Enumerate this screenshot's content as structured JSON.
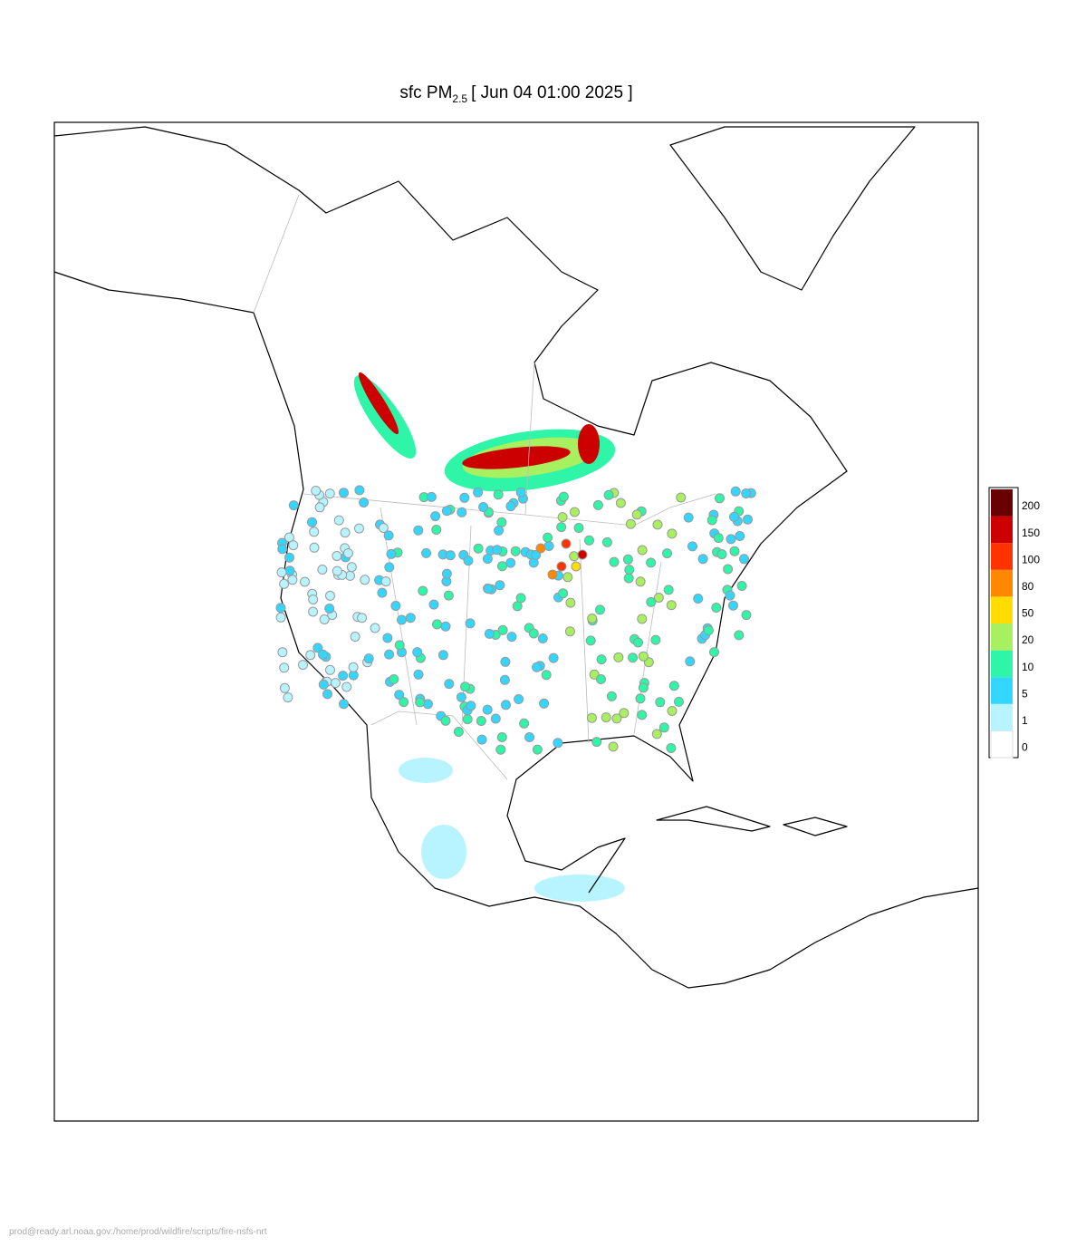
{
  "title": {
    "main": "sfc PM",
    "subscript": "2.5",
    "time": "[ Jun 04 01:00 2025 ]"
  },
  "legend": {
    "levels": [
      0,
      1,
      5,
      10,
      20,
      50,
      80,
      100,
      150,
      200
    ],
    "colors": [
      "#ffffff",
      "#b8f4ff",
      "#33d6ff",
      "#2ef5a8",
      "#a8f060",
      "#ffdd00",
      "#ff8800",
      "#ff3300",
      "#cc0000",
      "#680000"
    ]
  },
  "footer": "prod@ready.arl.noaa.gov:/home/prod/wildfire/scripts/fire-nsfs-nrt"
}
